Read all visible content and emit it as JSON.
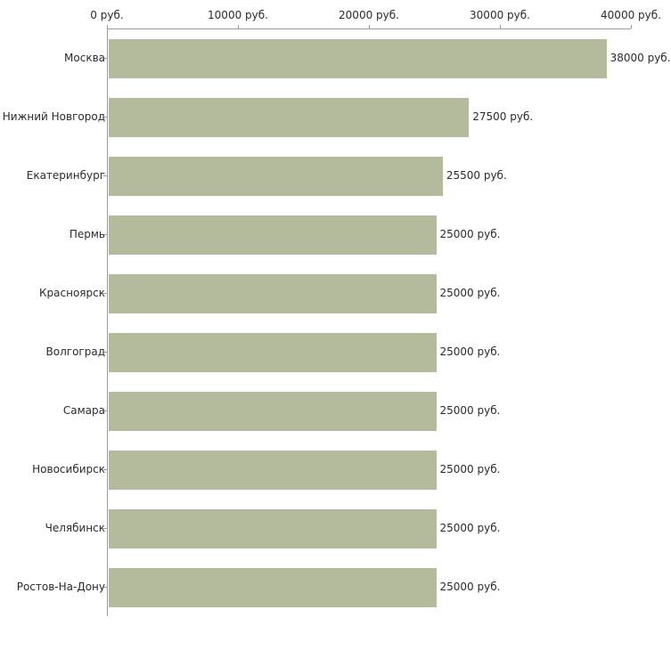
{
  "chart_data": {
    "type": "bar",
    "orientation": "horizontal",
    "title": "",
    "xlabel": "",
    "ylabel": "",
    "categories": [
      "Москва",
      "Нижний Новгород",
      "Екатеринбург",
      "Пермь",
      "Красноярск",
      "Волгоград",
      "Самара",
      "Новосибирск",
      "Челябинск",
      "Ростов-На-Дону"
    ],
    "values": [
      38000,
      27500,
      25500,
      25000,
      25000,
      25000,
      25000,
      25000,
      25000,
      25000
    ],
    "value_labels": [
      "38000 руб.",
      "27500 руб.",
      "25500 руб.",
      "25000 руб.",
      "25000 руб.",
      "25000 руб.",
      "25000 руб.",
      "25000 руб.",
      "25000 руб.",
      "25000 руб."
    ],
    "x_axis": {
      "position": "top",
      "min": 0,
      "max": 40000,
      "ticks": [
        0,
        10000,
        20000,
        30000,
        40000
      ],
      "tick_labels": [
        "0 руб.",
        "10000 руб.",
        "20000 руб.",
        "30000 руб.",
        "40000 руб."
      ]
    },
    "legend": false,
    "grid": false,
    "colors": {
      "bar": "#b4ba9c",
      "axis": "#9c9c9c",
      "text": "#2b2b2b",
      "background": "#ffffff"
    }
  }
}
